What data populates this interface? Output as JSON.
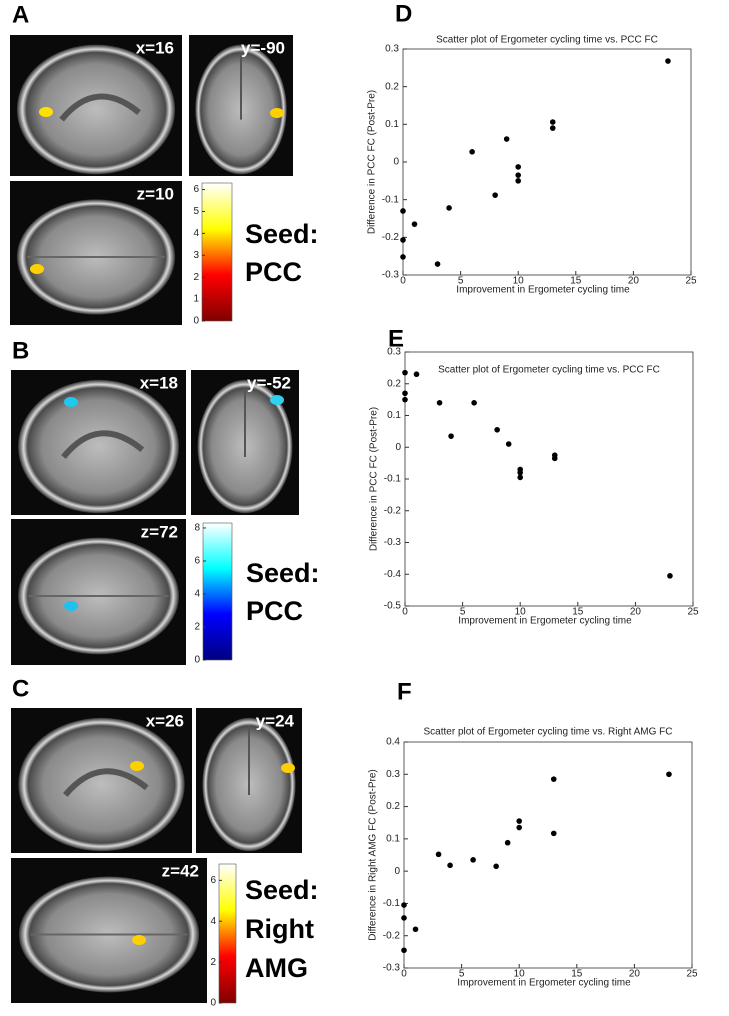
{
  "panels": [
    "A",
    "B",
    "C",
    "D",
    "E",
    "F"
  ],
  "slices": [
    "x=16",
    "y=-90",
    "z=10",
    "x=18",
    "y=-52",
    "z=72",
    "x=26",
    "y=24",
    "z=42"
  ],
  "seeds": [
    [
      "Seed:",
      "PCC"
    ],
    [
      "Seed:",
      "PCC"
    ],
    [
      "Seed:",
      "Right",
      "AMG"
    ]
  ],
  "chart_data": [
    {
      "type": "scatter",
      "title": "Scatter plot of Ergometer  cycling  time vs. PCC FC",
      "x_label": "Improvement in Ergometer  cycling  time",
      "y_label": "Difference in PCC FC (Post-Pre)",
      "color": "#000000",
      "x": [
        0,
        0,
        0,
        1,
        3,
        4,
        6,
        8,
        9,
        10,
        10,
        10,
        13,
        13,
        23
      ],
      "values": [
        -0.13,
        -0.207,
        -0.252,
        -0.165,
        -0.271,
        -0.122,
        0.027,
        -0.088,
        0.061,
        -0.013,
        -0.035,
        -0.05,
        0.106,
        0.09,
        0.268
      ],
      "xlim": [
        0,
        25
      ],
      "xticks": [
        0,
        5,
        10,
        15,
        20,
        25
      ],
      "ylim": [
        -0.3,
        0.3
      ],
      "yticks": [
        -0.3,
        -0.2,
        -0.1,
        0,
        0.1,
        0.2,
        0.3
      ]
    },
    {
      "type": "scatter",
      "title": "Scatter plot of Ergometer  cycling  time vs. PCC FC",
      "x_label": "Improvement in Ergometer  cycling  time",
      "y_label": "Difference in PCC FC (Post-Pre)",
      "color": "#000000",
      "x": [
        0,
        0,
        0,
        1,
        3,
        4,
        6,
        8,
        9,
        10,
        10,
        10,
        13,
        13,
        23
      ],
      "values": [
        0.235,
        0.17,
        0.15,
        0.23,
        0.14,
        0.035,
        0.14,
        0.055,
        0.01,
        -0.07,
        -0.08,
        -0.095,
        -0.025,
        -0.035,
        -0.405
      ],
      "xlim": [
        0,
        25
      ],
      "xticks": [
        0,
        5,
        10,
        15,
        20,
        25
      ],
      "ylim": [
        -0.5,
        0.3
      ],
      "yticks": [
        -0.5,
        -0.4,
        -0.3,
        -0.2,
        -0.1,
        0,
        0.1,
        0.2,
        0.3
      ]
    },
    {
      "type": "scatter",
      "title": "Scatter plot of Ergometer  cycling  time vs. Right AMG FC",
      "x_label": "Improvement in Ergometer  cycling  time",
      "y_label": "Difference in Right AMG FC (Post-Pre)",
      "color": "#000000",
      "x": [
        0,
        0,
        0,
        1,
        3,
        4,
        6,
        8,
        9,
        10,
        10,
        13,
        13,
        23
      ],
      "values": [
        -0.105,
        -0.145,
        -0.245,
        -0.18,
        0.052,
        0.018,
        0.035,
        0.015,
        0.088,
        0.155,
        0.135,
        0.285,
        0.117,
        0.3
      ],
      "xlim": [
        0,
        25
      ],
      "xticks": [
        0,
        5,
        10,
        15,
        20,
        25
      ],
      "ylim": [
        -0.3,
        0.4
      ],
      "yticks": [
        -0.3,
        -0.2,
        -0.1,
        0,
        0.1,
        0.2,
        0.3,
        0.4
      ]
    },
    {
      "type": "colorbar",
      "colors": [
        "#800000",
        "#ff0000",
        "#ffff00",
        "#ffffff"
      ],
      "ylim": [
        0,
        6.3
      ],
      "yticks": [
        0,
        1,
        2,
        3,
        4,
        5,
        6
      ]
    },
    {
      "type": "colorbar",
      "colors": [
        "#000080",
        "#0000ff",
        "#00ffff",
        "#ffffff"
      ],
      "ylim": [
        0,
        8.3
      ],
      "yticks": [
        0,
        2,
        4,
        6,
        8
      ]
    },
    {
      "type": "colorbar",
      "colors": [
        "#800000",
        "#ff0000",
        "#ffff00",
        "#ffffff"
      ],
      "ylim": [
        0,
        6.8
      ],
      "yticks": [
        0,
        2,
        4,
        6
      ]
    }
  ]
}
